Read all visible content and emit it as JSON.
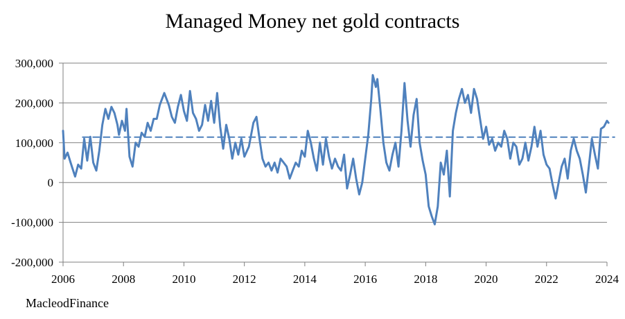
{
  "chart_data": {
    "type": "line",
    "title": "Managed Money net gold contracts",
    "xlabel": "",
    "ylabel": "",
    "source": "MacleodFinance",
    "xlim": [
      2006,
      2024
    ],
    "ylim": [
      -200000,
      300000
    ],
    "x_ticks": [
      2006,
      2008,
      2010,
      2012,
      2014,
      2016,
      2018,
      2020,
      2022,
      2024
    ],
    "x_tick_labels": [
      "2006",
      "2008",
      "2010",
      "2012",
      "2014",
      "2016",
      "2018",
      "2020",
      "2022",
      "2024"
    ],
    "y_ticks": [
      -200000,
      -100000,
      0,
      100000,
      200000,
      300000
    ],
    "y_tick_labels": [
      "-200,000",
      "-100,000",
      "0",
      "100,000",
      "200,000",
      "300,000"
    ],
    "grid": true,
    "colors": {
      "series": "#4f81bd",
      "average": "#4f81bd",
      "grid": "#7f7f7f"
    },
    "series": [
      {
        "name": "Managed Money net gold contracts",
        "points": [
          [
            2006.0,
            130000
          ],
          [
            2006.05,
            60000
          ],
          [
            2006.15,
            75000
          ],
          [
            2006.25,
            50000
          ],
          [
            2006.4,
            15000
          ],
          [
            2006.5,
            45000
          ],
          [
            2006.6,
            35000
          ],
          [
            2006.7,
            110000
          ],
          [
            2006.8,
            55000
          ],
          [
            2006.9,
            115000
          ],
          [
            2007.0,
            50000
          ],
          [
            2007.1,
            30000
          ],
          [
            2007.2,
            80000
          ],
          [
            2007.3,
            145000
          ],
          [
            2007.4,
            185000
          ],
          [
            2007.5,
            160000
          ],
          [
            2007.6,
            190000
          ],
          [
            2007.7,
            175000
          ],
          [
            2007.8,
            145000
          ],
          [
            2007.85,
            120000
          ],
          [
            2007.95,
            155000
          ],
          [
            2008.05,
            130000
          ],
          [
            2008.1,
            185000
          ],
          [
            2008.2,
            65000
          ],
          [
            2008.3,
            40000
          ],
          [
            2008.4,
            100000
          ],
          [
            2008.5,
            90000
          ],
          [
            2008.6,
            125000
          ],
          [
            2008.7,
            115000
          ],
          [
            2008.8,
            150000
          ],
          [
            2008.9,
            130000
          ],
          [
            2009.0,
            160000
          ],
          [
            2009.1,
            160000
          ],
          [
            2009.2,
            195000
          ],
          [
            2009.35,
            225000
          ],
          [
            2009.5,
            195000
          ],
          [
            2009.6,
            165000
          ],
          [
            2009.7,
            150000
          ],
          [
            2009.8,
            190000
          ],
          [
            2009.9,
            220000
          ],
          [
            2010.0,
            180000
          ],
          [
            2010.1,
            155000
          ],
          [
            2010.2,
            230000
          ],
          [
            2010.3,
            175000
          ],
          [
            2010.4,
            160000
          ],
          [
            2010.5,
            130000
          ],
          [
            2010.6,
            145000
          ],
          [
            2010.7,
            195000
          ],
          [
            2010.8,
            155000
          ],
          [
            2010.9,
            205000
          ],
          [
            2011.0,
            150000
          ],
          [
            2011.1,
            225000
          ],
          [
            2011.2,
            140000
          ],
          [
            2011.3,
            85000
          ],
          [
            2011.4,
            145000
          ],
          [
            2011.5,
            110000
          ],
          [
            2011.6,
            60000
          ],
          [
            2011.7,
            100000
          ],
          [
            2011.8,
            70000
          ],
          [
            2011.9,
            110000
          ],
          [
            2012.0,
            65000
          ],
          [
            2012.15,
            90000
          ],
          [
            2012.3,
            150000
          ],
          [
            2012.4,
            165000
          ],
          [
            2012.5,
            110000
          ],
          [
            2012.6,
            60000
          ],
          [
            2012.7,
            40000
          ],
          [
            2012.8,
            50000
          ],
          [
            2012.9,
            30000
          ],
          [
            2013.0,
            50000
          ],
          [
            2013.1,
            25000
          ],
          [
            2013.2,
            60000
          ],
          [
            2013.3,
            50000
          ],
          [
            2013.4,
            40000
          ],
          [
            2013.5,
            10000
          ],
          [
            2013.6,
            30000
          ],
          [
            2013.7,
            50000
          ],
          [
            2013.8,
            40000
          ],
          [
            2013.9,
            80000
          ],
          [
            2014.0,
            65000
          ],
          [
            2014.1,
            130000
          ],
          [
            2014.2,
            100000
          ],
          [
            2014.3,
            60000
          ],
          [
            2014.4,
            30000
          ],
          [
            2014.5,
            100000
          ],
          [
            2014.6,
            45000
          ],
          [
            2014.7,
            110000
          ],
          [
            2014.8,
            65000
          ],
          [
            2014.9,
            35000
          ],
          [
            2015.0,
            60000
          ],
          [
            2015.1,
            40000
          ],
          [
            2015.2,
            30000
          ],
          [
            2015.3,
            70000
          ],
          [
            2015.4,
            -15000
          ],
          [
            2015.5,
            20000
          ],
          [
            2015.6,
            60000
          ],
          [
            2015.7,
            10000
          ],
          [
            2015.8,
            -30000
          ],
          [
            2015.9,
            0
          ],
          [
            2016.0,
            60000
          ],
          [
            2016.1,
            120000
          ],
          [
            2016.2,
            210000
          ],
          [
            2016.25,
            270000
          ],
          [
            2016.35,
            240000
          ],
          [
            2016.4,
            260000
          ],
          [
            2016.5,
            185000
          ],
          [
            2016.6,
            100000
          ],
          [
            2016.7,
            50000
          ],
          [
            2016.8,
            30000
          ],
          [
            2016.9,
            70000
          ],
          [
            2017.0,
            100000
          ],
          [
            2017.1,
            40000
          ],
          [
            2017.2,
            130000
          ],
          [
            2017.3,
            250000
          ],
          [
            2017.4,
            155000
          ],
          [
            2017.5,
            90000
          ],
          [
            2017.6,
            170000
          ],
          [
            2017.7,
            210000
          ],
          [
            2017.8,
            100000
          ],
          [
            2017.9,
            55000
          ],
          [
            2018.0,
            20000
          ],
          [
            2018.1,
            -60000
          ],
          [
            2018.2,
            -85000
          ],
          [
            2018.3,
            -105000
          ],
          [
            2018.4,
            -60000
          ],
          [
            2018.5,
            50000
          ],
          [
            2018.6,
            20000
          ],
          [
            2018.7,
            80000
          ],
          [
            2018.8,
            -35000
          ],
          [
            2018.9,
            130000
          ],
          [
            2019.0,
            175000
          ],
          [
            2019.1,
            210000
          ],
          [
            2019.2,
            235000
          ],
          [
            2019.3,
            200000
          ],
          [
            2019.4,
            220000
          ],
          [
            2019.5,
            175000
          ],
          [
            2019.6,
            235000
          ],
          [
            2019.7,
            210000
          ],
          [
            2019.8,
            160000
          ],
          [
            2019.9,
            110000
          ],
          [
            2020.0,
            140000
          ],
          [
            2020.1,
            95000
          ],
          [
            2020.2,
            110000
          ],
          [
            2020.3,
            80000
          ],
          [
            2020.4,
            100000
          ],
          [
            2020.5,
            90000
          ],
          [
            2020.6,
            130000
          ],
          [
            2020.7,
            110000
          ],
          [
            2020.8,
            60000
          ],
          [
            2020.9,
            100000
          ],
          [
            2021.0,
            90000
          ],
          [
            2021.1,
            45000
          ],
          [
            2021.2,
            60000
          ],
          [
            2021.3,
            100000
          ],
          [
            2021.4,
            55000
          ],
          [
            2021.5,
            90000
          ],
          [
            2021.6,
            140000
          ],
          [
            2021.7,
            90000
          ],
          [
            2021.8,
            130000
          ],
          [
            2021.9,
            70000
          ],
          [
            2022.0,
            45000
          ],
          [
            2022.1,
            35000
          ],
          [
            2022.2,
            -5000
          ],
          [
            2022.3,
            -40000
          ],
          [
            2022.4,
            0
          ],
          [
            2022.5,
            40000
          ],
          [
            2022.6,
            60000
          ],
          [
            2022.7,
            10000
          ],
          [
            2022.8,
            80000
          ],
          [
            2022.9,
            110000
          ],
          [
            2023.0,
            80000
          ],
          [
            2023.1,
            60000
          ],
          [
            2023.2,
            20000
          ],
          [
            2023.3,
            -25000
          ],
          [
            2023.4,
            40000
          ],
          [
            2023.5,
            110000
          ],
          [
            2023.6,
            70000
          ],
          [
            2023.7,
            35000
          ],
          [
            2023.8,
            135000
          ],
          [
            2023.9,
            140000
          ],
          [
            2024.0,
            155000
          ],
          [
            2024.05,
            150000
          ]
        ]
      },
      {
        "name": "Average",
        "style": "dashed",
        "points": [
          [
            2006.65,
            114000
          ],
          [
            2024.25,
            114000
          ]
        ]
      }
    ]
  }
}
